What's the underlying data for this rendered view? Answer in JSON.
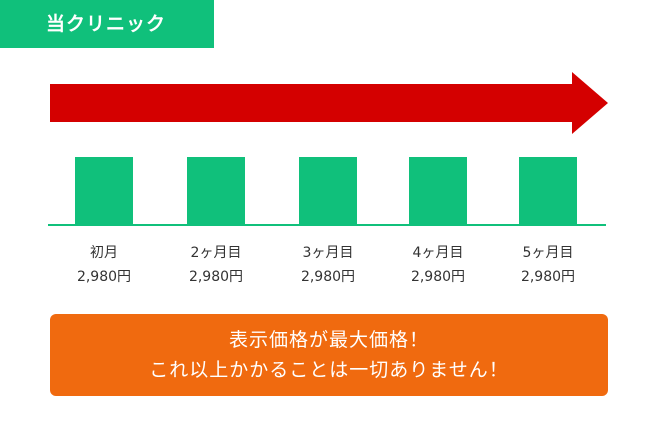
{
  "header": {
    "tab_label": "当クリニック"
  },
  "colors": {
    "accent_green": "#10c07b",
    "arrow_red": "#d40000",
    "notice_orange": "#f06a0f"
  },
  "chart_data": {
    "type": "bar",
    "categories": [
      "初月",
      "2ヶ月目",
      "3ヶ月目",
      "4ヶ月目",
      "5ヶ月目"
    ],
    "value_labels": [
      "2,980円",
      "2,980円",
      "2,980円",
      "2,980円",
      "2,980円"
    ],
    "values": [
      2980,
      2980,
      2980,
      2980,
      2980
    ],
    "title": "",
    "xlabel": "",
    "ylabel": "",
    "ylim": [
      0,
      2980
    ],
    "grid": false,
    "legend": "none"
  },
  "notice": {
    "line1": "表示価格が最大価格！",
    "line2": "これ以上かかることは一切ありません！"
  }
}
